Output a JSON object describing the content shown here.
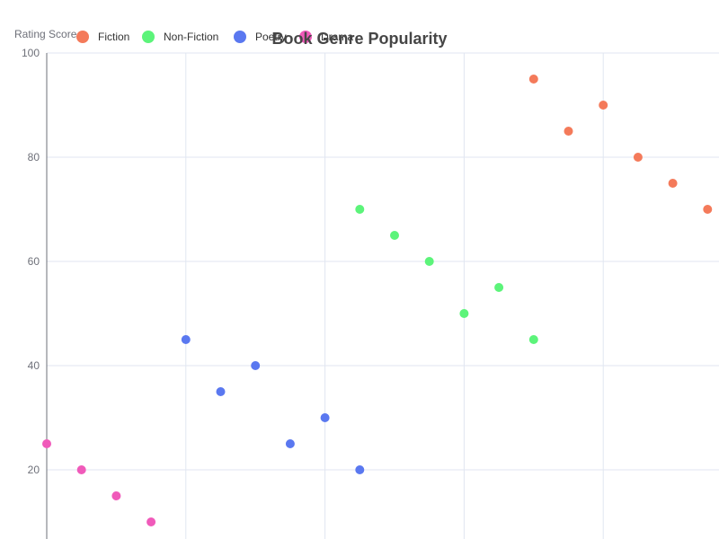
{
  "chart_data": {
    "type": "scatter",
    "title": "Book Genre Popularity",
    "ylabel": "Rating Score",
    "xlabel": "",
    "ylim": [
      0,
      100
    ],
    "y_ticks": [
      20,
      40,
      60,
      80,
      100
    ],
    "grid": true,
    "legend_position": "top-left",
    "series": [
      {
        "name": "Fiction",
        "color": "#f47a5a",
        "points": [
          [
            14,
            95
          ],
          [
            15,
            85
          ],
          [
            16,
            90
          ],
          [
            17,
            80
          ],
          [
            18,
            75
          ],
          [
            19,
            70
          ]
        ]
      },
      {
        "name": "Non-Fiction",
        "color": "#5cf47a",
        "points": [
          [
            9,
            70
          ],
          [
            10,
            65
          ],
          [
            11,
            60
          ],
          [
            12,
            50
          ],
          [
            13,
            55
          ],
          [
            14,
            45
          ]
        ]
      },
      {
        "name": "Poetry",
        "color": "#5a78f0",
        "points": [
          [
            4,
            45
          ],
          [
            5,
            35
          ],
          [
            6,
            40
          ],
          [
            7,
            25
          ],
          [
            8,
            30
          ],
          [
            9,
            20
          ]
        ]
      },
      {
        "name": "Drama",
        "color": "#f05aba",
        "points": [
          [
            0,
            25
          ],
          [
            1,
            20
          ],
          [
            2,
            15
          ],
          [
            3,
            10
          ]
        ]
      }
    ]
  }
}
